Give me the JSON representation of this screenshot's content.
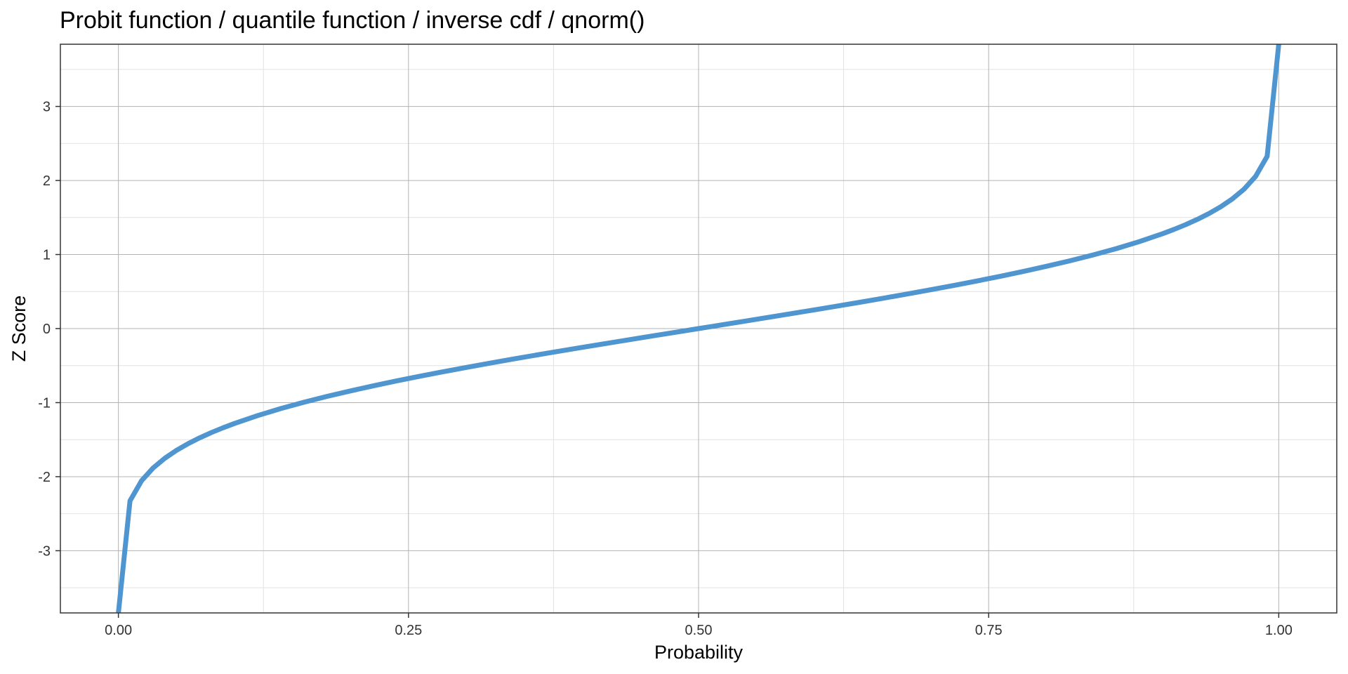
{
  "chart_data": {
    "type": "line",
    "title": "Probit function / quantile function / inverse cdf / qnorm()",
    "xlabel": "Probability",
    "ylabel": "Z Score",
    "xlim": [
      -0.05,
      1.05
    ],
    "ylim": [
      -3.84,
      3.84
    ],
    "x_ticks": [
      0,
      0.25,
      0.5,
      0.75,
      1
    ],
    "x_tick_labels": [
      "0.00",
      "0.25",
      "0.50",
      "0.75",
      "1.00"
    ],
    "x_minor_ticks": [
      0.125,
      0.375,
      0.625,
      0.875
    ],
    "y_ticks": [
      -3,
      -2,
      -1,
      0,
      1,
      2,
      3
    ],
    "y_tick_labels": [
      "-3",
      "-2",
      "-1",
      "0",
      "1",
      "2",
      "3"
    ],
    "y_minor_ticks": [
      -3.5,
      -2.5,
      -1.5,
      -0.5,
      0.5,
      1.5,
      2.5,
      3.5
    ],
    "grid": true,
    "legend": "none",
    "series": [
      {
        "color": "#4f95d0",
        "x": [
          0,
          0.01,
          0.02,
          0.03,
          0.04,
          0.05,
          0.06,
          0.07,
          0.08,
          0.09,
          0.1,
          0.12,
          0.14,
          0.16,
          0.18,
          0.2,
          0.22,
          0.24,
          0.26,
          0.28,
          0.3,
          0.32,
          0.34,
          0.36,
          0.38,
          0.4,
          0.42,
          0.44,
          0.46,
          0.48,
          0.5,
          0.52,
          0.54,
          0.56,
          0.58,
          0.6,
          0.62,
          0.64,
          0.66,
          0.68,
          0.7,
          0.72,
          0.74,
          0.76,
          0.78,
          0.8,
          0.82,
          0.84,
          0.86,
          0.88,
          0.9,
          0.91,
          0.92,
          0.93,
          0.94,
          0.95,
          0.96,
          0.97,
          0.98,
          0.99,
          1
        ],
        "y": [
          -3.84,
          -2.326,
          -2.054,
          -1.881,
          -1.751,
          -1.645,
          -1.555,
          -1.476,
          -1.405,
          -1.341,
          -1.282,
          -1.175,
          -1.08,
          -0.994,
          -0.915,
          -0.842,
          -0.772,
          -0.706,
          -0.643,
          -0.583,
          -0.524,
          -0.468,
          -0.412,
          -0.358,
          -0.305,
          -0.253,
          -0.202,
          -0.151,
          -0.1,
          -0.05,
          0,
          0.05,
          0.1,
          0.151,
          0.202,
          0.253,
          0.305,
          0.358,
          0.412,
          0.468,
          0.524,
          0.583,
          0.643,
          0.706,
          0.772,
          0.842,
          0.915,
          0.994,
          1.08,
          1.175,
          1.282,
          1.341,
          1.405,
          1.476,
          1.555,
          1.645,
          1.751,
          1.881,
          2.054,
          2.326,
          3.84
        ]
      }
    ]
  }
}
